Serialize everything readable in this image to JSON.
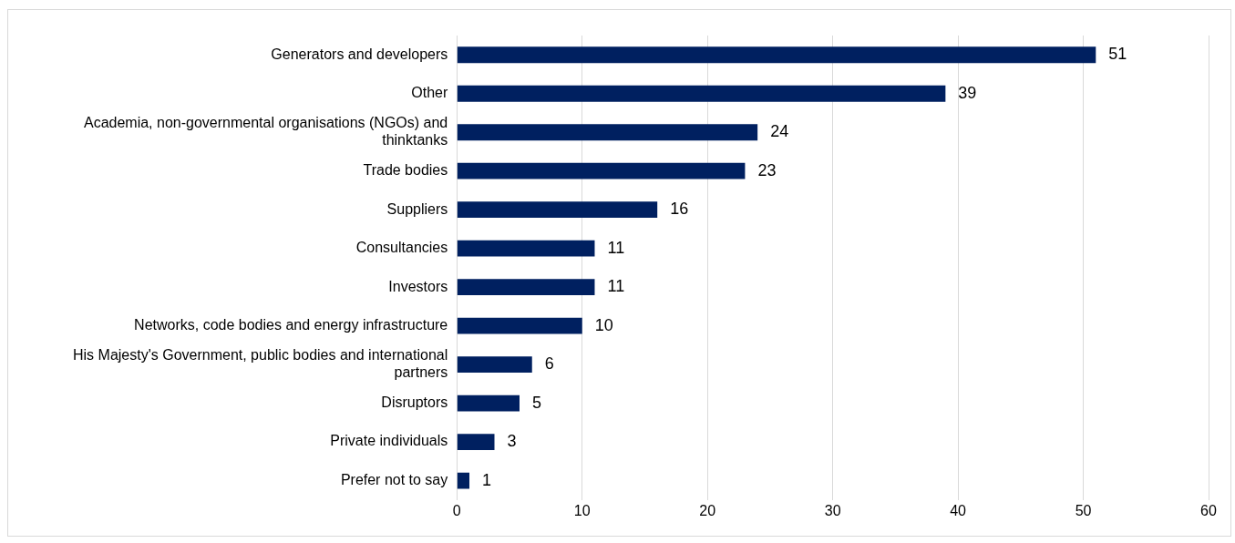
{
  "chart_data": {
    "type": "bar",
    "orientation": "horizontal",
    "categories": [
      "Generators and developers",
      "Other",
      "Academia, non-governmental organisations (NGOs) and thinktanks",
      "Trade bodies",
      "Suppliers",
      "Consultancies",
      "Investors",
      "Networks, code bodies and energy infrastructure",
      "His Majesty's Government, public bodies and international partners",
      "Disruptors",
      "Private individuals",
      "Prefer not to say"
    ],
    "values": [
      51,
      39,
      24,
      23,
      16,
      11,
      11,
      10,
      6,
      5,
      3,
      1
    ],
    "color": "#002060",
    "xlim": [
      0,
      60
    ],
    "xticks": [
      0,
      10,
      20,
      30,
      40,
      50,
      60
    ],
    "grid": "x",
    "legend": false,
    "data_labels": true
  }
}
